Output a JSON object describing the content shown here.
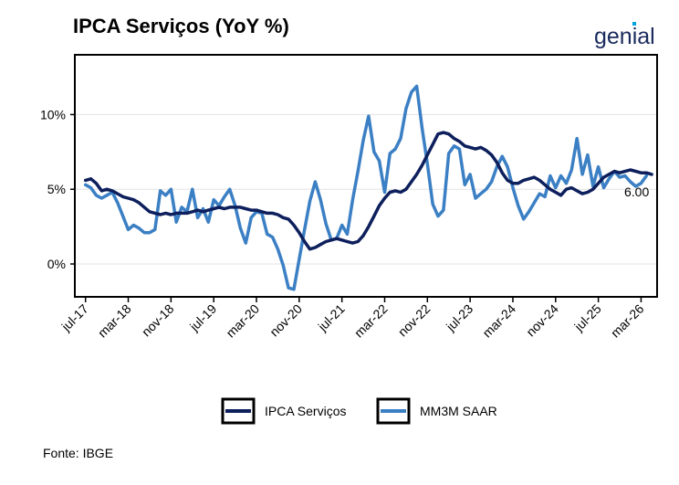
{
  "title": "IPCA Serviços (YoY %)",
  "brand": {
    "name": "genial",
    "color": "#1a2a5c",
    "accent": "#00a3e0"
  },
  "source": "Fonte: IBGE",
  "chart_data": {
    "type": "line",
    "title": "IPCA Serviços (YoY %)",
    "xlabel": "",
    "ylabel": "",
    "x_tick_labels": [
      "jul-17",
      "mar-18",
      "nov-18",
      "jul-19",
      "mar-20",
      "nov-20",
      "jul-21",
      "mar-22",
      "nov-22",
      "jul-23",
      "mar-24",
      "nov-24",
      "jul-25",
      "mar-26"
    ],
    "x_start": "2017-06",
    "x_range": [
      "2017-04",
      "2026-05"
    ],
    "ylim": [
      -2.2,
      14
    ],
    "y_ticks": [
      0,
      5,
      10
    ],
    "y_tick_labels": [
      "0%",
      "5%",
      "10%"
    ],
    "grid": "horizontal",
    "legend": "bottom",
    "end_label": "6.00",
    "series": [
      {
        "name": "IPCA Serviços",
        "color": "#0d1f5c",
        "values": [
          5.6,
          5.7,
          5.4,
          4.9,
          5.0,
          4.9,
          4.7,
          4.5,
          4.4,
          4.3,
          4.1,
          3.8,
          3.5,
          3.4,
          3.3,
          3.4,
          3.3,
          3.4,
          3.4,
          3.4,
          3.5,
          3.6,
          3.5,
          3.6,
          3.7,
          3.8,
          3.7,
          3.8,
          3.8,
          3.8,
          3.7,
          3.6,
          3.6,
          3.5,
          3.4,
          3.4,
          3.3,
          3.1,
          3.0,
          2.6,
          2.1,
          1.5,
          1.0,
          1.1,
          1.3,
          1.5,
          1.6,
          1.7,
          1.6,
          1.5,
          1.4,
          1.5,
          1.9,
          2.5,
          3.2,
          3.9,
          4.4,
          4.8,
          4.9,
          4.8,
          5.0,
          5.5,
          6.0,
          6.6,
          7.3,
          8.0,
          8.7,
          8.8,
          8.7,
          8.4,
          8.2,
          7.9,
          7.8,
          7.7,
          7.8,
          7.6,
          7.3,
          6.8,
          6.1,
          5.6,
          5.4,
          5.4,
          5.6,
          5.7,
          5.8,
          5.6,
          5.3,
          5.0,
          4.8,
          4.6,
          5.0,
          5.1,
          4.9,
          4.7,
          4.8,
          5.0,
          5.4,
          5.8,
          6.0,
          6.2,
          6.1,
          6.2,
          6.3,
          6.2,
          6.1,
          6.1,
          6.0
        ]
      },
      {
        "name": "MM3M SAAR",
        "color": "#3b7fc4",
        "values": [
          5.3,
          5.1,
          4.6,
          4.4,
          4.6,
          4.8,
          4.1,
          3.2,
          2.3,
          2.6,
          2.4,
          2.1,
          2.1,
          2.3,
          4.9,
          4.6,
          5.0,
          2.8,
          3.8,
          3.5,
          5.0,
          3.1,
          3.7,
          2.8,
          4.3,
          3.9,
          4.5,
          5.0,
          3.9,
          2.4,
          1.4,
          3.1,
          3.5,
          3.4,
          2.0,
          1.8,
          1.0,
          -0.1,
          -1.6,
          -1.7,
          0.3,
          2.3,
          4.2,
          5.5,
          4.3,
          2.7,
          1.6,
          1.7,
          2.6,
          2.0,
          4.3,
          6.2,
          8.3,
          9.9,
          7.5,
          6.9,
          4.8,
          7.4,
          7.7,
          8.4,
          10.4,
          11.5,
          11.9,
          9.1,
          6.7,
          4.0,
          3.2,
          3.6,
          7.4,
          7.9,
          7.7,
          5.3,
          6.0,
          4.4,
          4.7,
          5.0,
          5.5,
          6.5,
          7.2,
          6.5,
          5.1,
          3.9,
          3.0,
          3.5,
          4.1,
          4.7,
          4.5,
          5.9,
          5.1,
          5.9,
          5.4,
          6.3,
          8.4,
          6.0,
          7.3,
          5.2,
          6.5,
          5.1,
          5.7,
          6.2,
          5.8,
          5.9,
          5.5,
          5.2,
          5.4,
          5.9
        ]
      }
    ]
  }
}
